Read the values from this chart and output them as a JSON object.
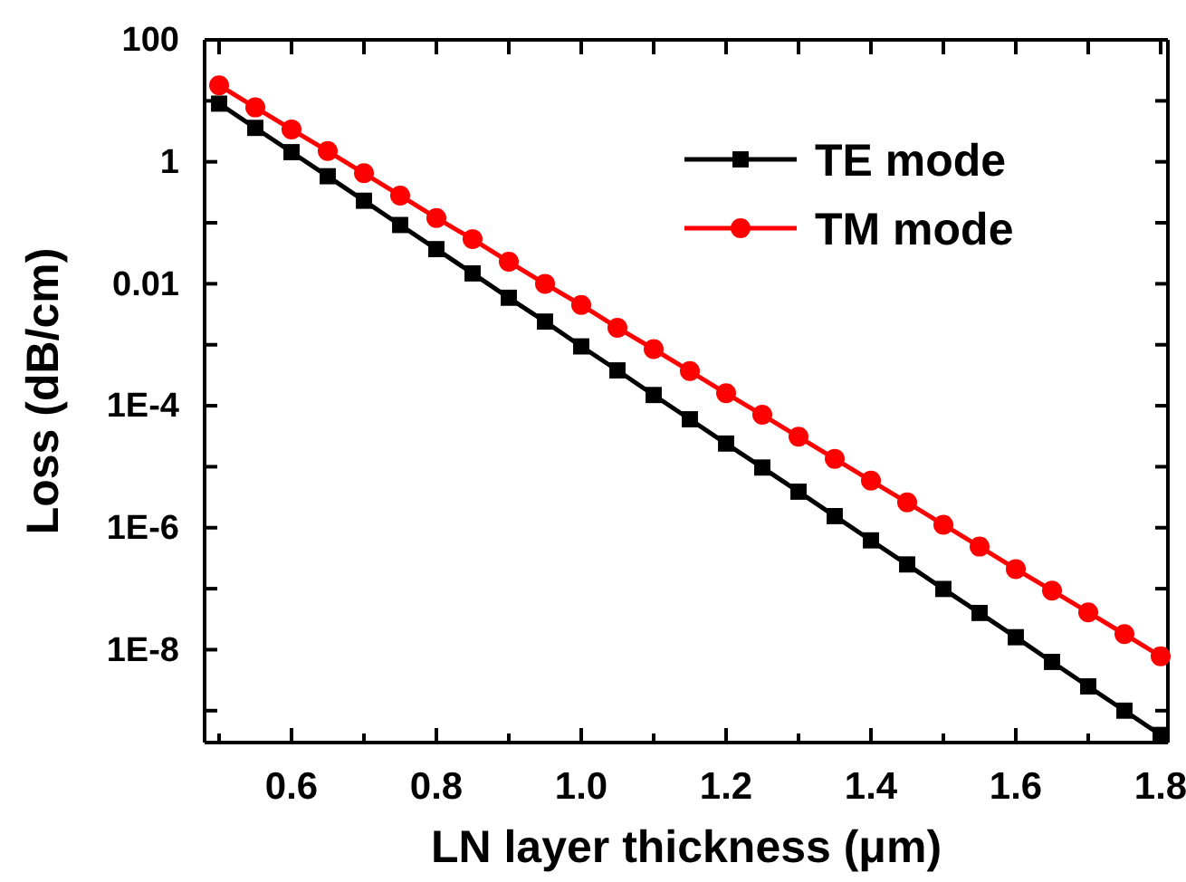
{
  "chart_data": {
    "type": "line",
    "xlabel": "LN layer thickness (μm)",
    "ylabel": "Loss (dB/cm)",
    "log": "y",
    "legend": "top right",
    "x": [
      0.5,
      0.55,
      0.6,
      0.65,
      0.7,
      0.75,
      0.8,
      0.85,
      0.9,
      0.95,
      1.0,
      1.05,
      1.1,
      1.15,
      1.2,
      1.25,
      1.3,
      1.35,
      1.4,
      1.45,
      1.5,
      1.55,
      1.6,
      1.65,
      1.7,
      1.75,
      1.8
    ],
    "xlim": [
      0.48,
      1.81
    ],
    "xticks": [
      {
        "value": 0.5,
        "label": null
      },
      0.6,
      {
        "value": 0.7,
        "label": null
      },
      0.8,
      {
        "value": 0.9,
        "label": null
      },
      {
        "value": 1.0,
        "label": "1.0"
      },
      {
        "value": 1.1,
        "label": null
      },
      1.2,
      {
        "value": 1.3,
        "label": null
      },
      1.4,
      {
        "value": 1.5,
        "label": null
      },
      1.6,
      {
        "value": 1.7,
        "label": null
      },
      1.8
    ],
    "ylim": [
      3e-10,
      100
    ],
    "yticks": [
      100,
      {
        "value": 10,
        "label": null
      },
      1,
      {
        "value": 0.1,
        "label": null
      },
      0.01,
      {
        "value": 0.001,
        "label": null
      },
      {
        "value": 0.0001,
        "label": "1E-4"
      },
      {
        "value": 1e-05,
        "label": null
      },
      {
        "value": 1e-06,
        "label": "1E-6"
      },
      {
        "value": 1e-07,
        "label": null
      },
      {
        "value": 1e-08,
        "label": "1E-8"
      },
      {
        "value": 1e-09,
        "label": null
      }
    ],
    "series": [
      {
        "name": "TE mode",
        "color": "#000000",
        "marker": "square",
        "values": [
          9.0,
          3.6,
          1.44,
          0.58,
          0.23,
          0.092,
          0.037,
          0.0148,
          0.0059,
          0.0024,
          0.00094,
          0.00038,
          0.00015,
          6e-05,
          2.4e-05,
          9.7e-06,
          3.9e-06,
          1.55e-06,
          6.2e-07,
          2.5e-07,
          9.9e-08,
          4e-08,
          1.6e-08,
          6.3e-09,
          2.5e-09,
          1e-09,
          4e-10
        ]
      },
      {
        "name": "TM mode",
        "color": "#ff0000",
        "marker": "circle",
        "values": [
          18,
          7.8,
          3.4,
          1.5,
          0.65,
          0.28,
          0.12,
          0.054,
          0.023,
          0.01,
          0.0045,
          0.0019,
          0.00085,
          0.00037,
          0.00016,
          7.1e-05,
          3.1e-05,
          1.35e-05,
          5.9e-06,
          2.6e-06,
          1.12e-06,
          4.9e-07,
          2.1e-07,
          9.3e-08,
          4.1e-08,
          1.8e-08,
          7.8e-09
        ]
      }
    ]
  }
}
